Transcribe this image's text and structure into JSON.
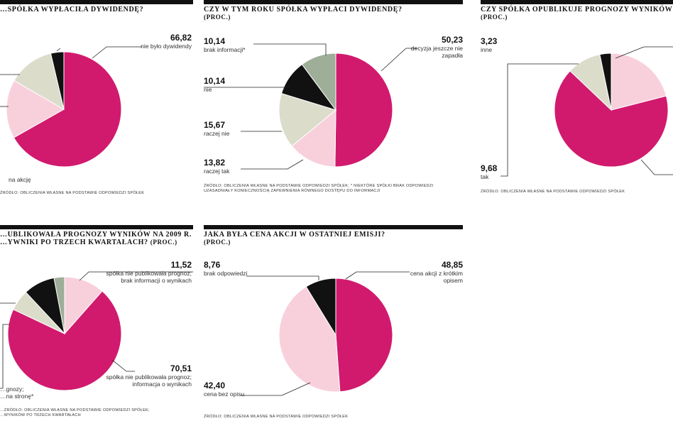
{
  "colors": {
    "magenta": "#d11a6e",
    "pink": "#f8d0dc",
    "beige": "#dcdccb",
    "black": "#111111",
    "gray": "#9fae98"
  },
  "chart_data": [
    {
      "type": "pie",
      "title": "…spółka wypłaciła dywidendę?",
      "source": "Źródło: obliczenia własne na podstawie odpowiedzi spółek",
      "slices": [
        {
          "label": "nie było dywidendy",
          "value": 66.82,
          "color": "magenta",
          "value_text": "66,82"
        },
        {
          "label": "",
          "value": 16.5,
          "color": "pink",
          "value_text": ""
        },
        {
          "label": "",
          "value": 13.0,
          "color": "beige",
          "value_text": ""
        },
        {
          "label": "",
          "value": 3.68,
          "color": "black",
          "value_text": ""
        }
      ],
      "extra_text": [
        "na akcję"
      ]
    },
    {
      "type": "pie",
      "title": "Czy w tym roku spółka wypłaci dywidendę?",
      "subtitle": "(proc.)",
      "source": "Źródło: obliczenia własne na podstawie odpowiedzi spółek; * niektóre spółki brak odpowiedzi uzasadniały koniecznością zapewnienia równego dostępu do informacji",
      "slices": [
        {
          "label": "decyzja jeszcze nie zapadła",
          "value": 50.23,
          "color": "magenta",
          "value_text": "50,23"
        },
        {
          "label": "raczej tak",
          "value": 13.82,
          "color": "pink",
          "value_text": "13,82"
        },
        {
          "label": "raczej nie",
          "value": 15.67,
          "color": "beige",
          "value_text": "15,67"
        },
        {
          "label": "nie",
          "value": 10.14,
          "color": "black",
          "value_text": "10,14"
        },
        {
          "label": "brak informacji*",
          "value": 10.14,
          "color": "gray",
          "value_text": "10,14"
        }
      ]
    },
    {
      "type": "pie",
      "title": "Czy spółka opublikuje prognozy wyników…",
      "subtitle": "(proc.)",
      "source": "Źródło: obliczenia własne na podstawie odpowiedzi spółek",
      "slices": [
        {
          "label": "",
          "value": 21.0,
          "color": "pink",
          "value_text": ""
        },
        {
          "label": "",
          "value": 66.09,
          "color": "magenta",
          "value_text": ""
        },
        {
          "label": "tak",
          "value": 9.68,
          "color": "beige",
          "value_text": "9,68"
        },
        {
          "label": "inne",
          "value": 3.23,
          "color": "black",
          "value_text": "3,23"
        }
      ]
    },
    {
      "type": "pie",
      "title_lines": [
        "…ublikowała prognozy wyników na 2009 r.",
        "…ywniki po trzech kwartałach?"
      ],
      "subtitle": "(proc.)",
      "source_lines": [
        "…źródło: obliczenia własne na podstawie odpowiedzi spółek;",
        "…wyników po trzech kwartałach"
      ],
      "slices": [
        {
          "label": "spółka nie publikowała prognoz; brak informacji o wynikach",
          "value": 11.52,
          "color": "pink",
          "value_text": "11,52"
        },
        {
          "label": "spółka nie publikowała prognoz; informacja o wynikach",
          "value": 70.51,
          "color": "magenta",
          "value_text": "70,51"
        },
        {
          "label": "",
          "value": 6.0,
          "color": "beige",
          "value_text": ""
        },
        {
          "label": "",
          "value": 8.97,
          "color": "black",
          "value_text": ""
        },
        {
          "label": "",
          "value": 3.0,
          "color": "gray",
          "value_text": ""
        }
      ],
      "extra_text": [
        "…gnozy;",
        "…na stronę*"
      ]
    },
    {
      "type": "pie",
      "title": "Jaka była cena akcji w ostatniej emisji?",
      "subtitle": "(proc.)",
      "source": "Źródło: obliczenia własne na podstawie odpowiedzi spółek",
      "slices": [
        {
          "label": "cena akcji z krótkim opisem",
          "value": 48.85,
          "color": "magenta",
          "value_text": "48,85"
        },
        {
          "label": "cena bez opisu",
          "value": 42.4,
          "color": "pink",
          "value_text": "42,40"
        },
        {
          "label": "brak odpowiedzi",
          "value": 8.76,
          "color": "black",
          "value_text": "8,76"
        }
      ]
    }
  ]
}
